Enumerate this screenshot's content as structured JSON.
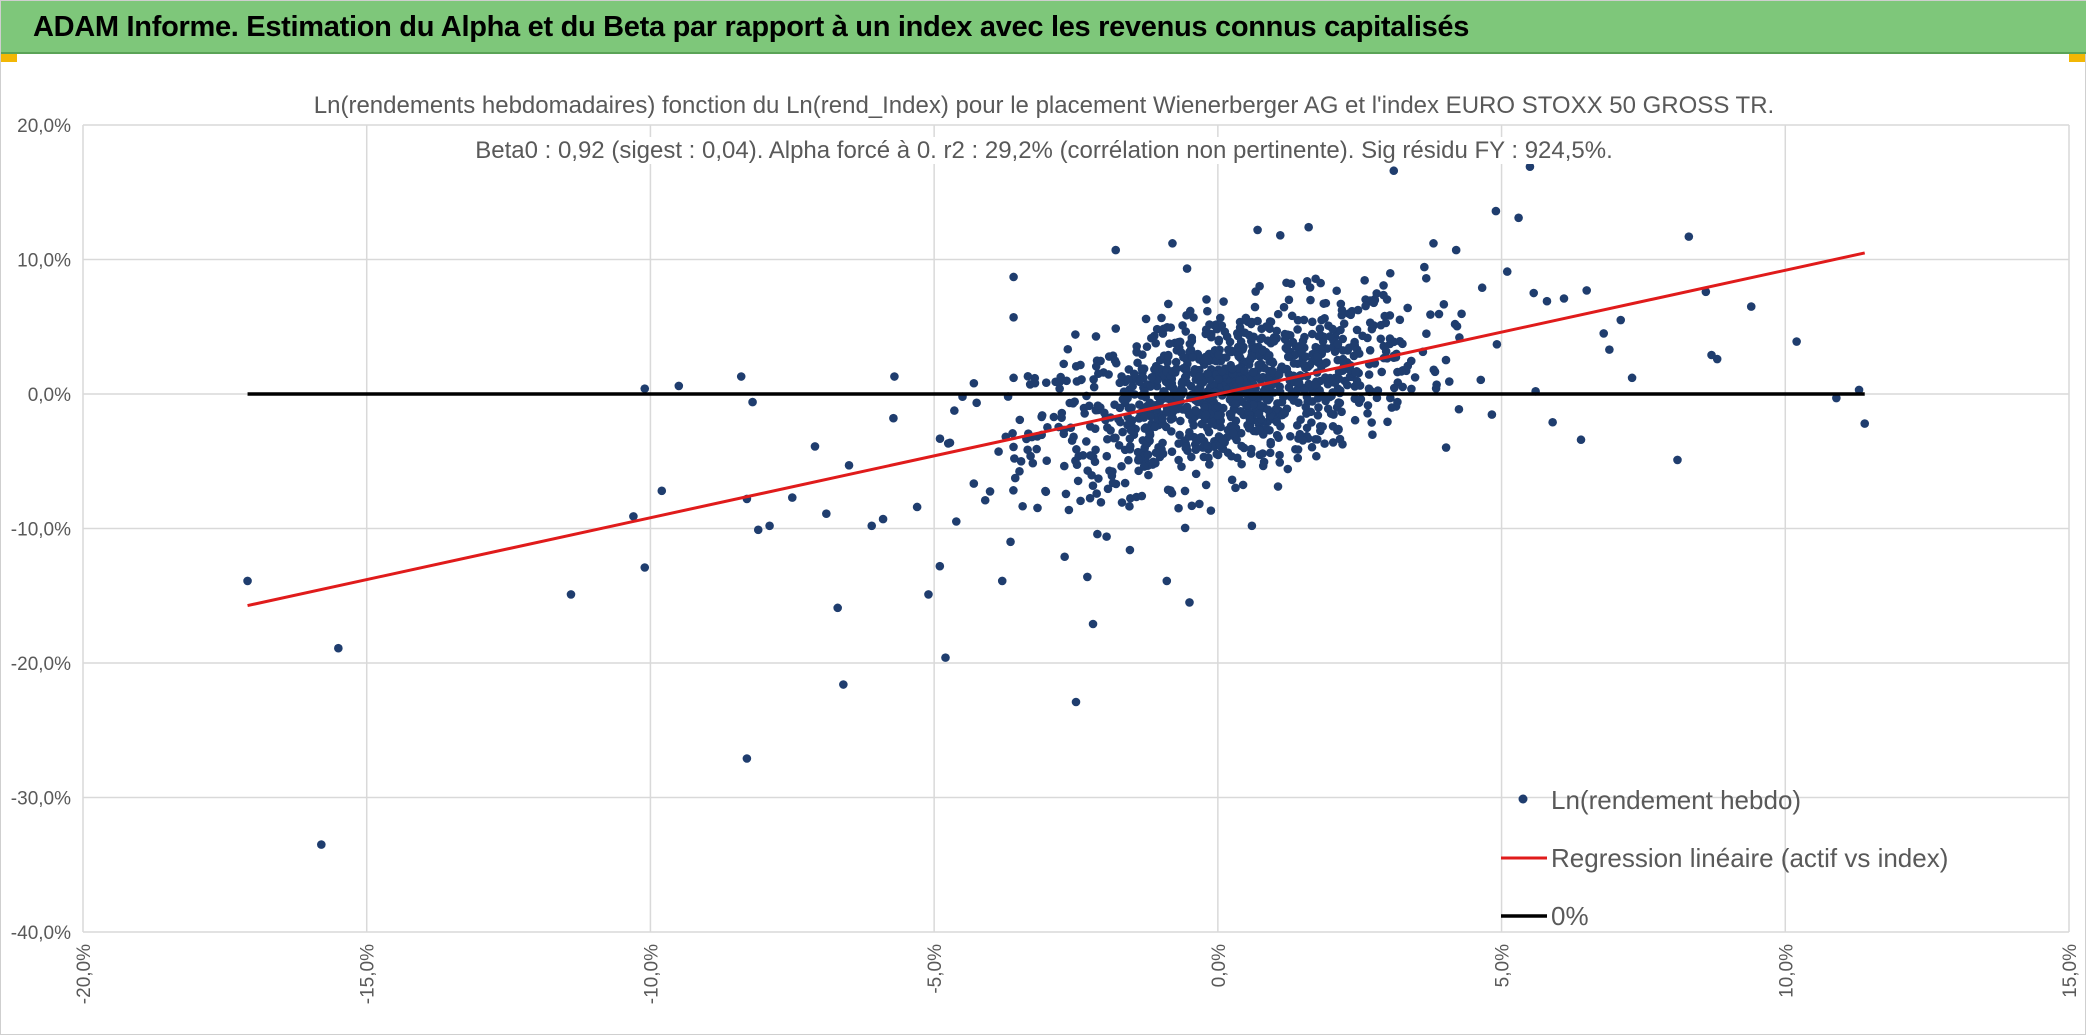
{
  "header": {
    "title": "ADAM Informe. Estimation du Alpha et du Beta par rapport à un index avec les revenus connus capitalisés"
  },
  "colors": {
    "header_bg": "#7ec77a",
    "points": "#1f3d6e",
    "regression": "#e01b1b",
    "zero_line": "#000000",
    "grid": "#d9d9d9",
    "text": "#595959"
  },
  "chart_data": {
    "type": "scatter",
    "title": "Ln(rendements hebdomadaires) fonction du Ln(rend_Index) pour le placement Wienerberger AG et l'index EURO STOXX 50 GROSS TR.",
    "subtitle": "Beta0 : 0,92 (sigest : 0,04). Alpha forcé à 0. r2 : 29,2% (corrélation non pertinente). Sig résidu FY : 924,5%.",
    "xlabel": "",
    "ylabel": "",
    "xlim": [
      -0.2,
      0.15
    ],
    "ylim": [
      -0.4,
      0.2
    ],
    "x_ticks": [
      -0.2,
      -0.15,
      -0.1,
      -0.05,
      0.0,
      0.05,
      0.1,
      0.15
    ],
    "x_tick_labels": [
      "-20,0%",
      "-15,0%",
      "-10,0%",
      "-5,0%",
      "0,0%",
      "5,0%",
      "10,0%",
      "15,0%"
    ],
    "y_ticks": [
      0.2,
      0.1,
      0.0,
      -0.1,
      -0.2,
      -0.3,
      -0.4
    ],
    "y_tick_labels": [
      "20,0%",
      "10,0%",
      "0,0%",
      "-10,0%",
      "-20,0%",
      "-30,0%",
      "-40,0%"
    ],
    "grid": true,
    "legend_position": "bottom-right",
    "legend": {
      "points": "Ln(rendement hebdo)",
      "regression": "Regression linéaire (actif vs index)",
      "zero": "0%"
    },
    "regression": {
      "slope": 0.92,
      "intercept": 0,
      "x_range": [
        -0.171,
        0.114
      ]
    },
    "zero_line": {
      "y": 0,
      "x_range": [
        -0.171,
        0.114
      ]
    },
    "points_core": {
      "count": 1150,
      "x_mean": 0.002,
      "x_sd": 0.017,
      "slope": 0.92,
      "resid_sd": 0.03
    },
    "points_outliers": [
      [
        -0.171,
        -0.139
      ],
      [
        -0.155,
        -0.189
      ],
      [
        -0.158,
        -0.335
      ],
      [
        -0.114,
        -0.149
      ],
      [
        -0.101,
        -0.129
      ],
      [
        -0.101,
        0.004
      ],
      [
        -0.098,
        -0.072
      ],
      [
        -0.103,
        -0.091
      ],
      [
        -0.095,
        0.006
      ],
      [
        -0.083,
        -0.078
      ],
      [
        -0.084,
        0.013
      ],
      [
        -0.081,
        -0.101
      ],
      [
        -0.082,
        -0.006
      ],
      [
        -0.079,
        -0.098
      ],
      [
        -0.083,
        -0.271
      ],
      [
        -0.075,
        -0.077
      ],
      [
        -0.071,
        -0.039
      ],
      [
        -0.069,
        -0.089
      ],
      [
        -0.067,
        -0.159
      ],
      [
        -0.066,
        -0.216
      ],
      [
        -0.065,
        -0.053
      ],
      [
        -0.061,
        -0.098
      ],
      [
        -0.059,
        -0.093
      ],
      [
        -0.057,
        0.013
      ],
      [
        -0.053,
        -0.084
      ],
      [
        -0.051,
        -0.149
      ],
      [
        -0.049,
        -0.128
      ],
      [
        -0.048,
        -0.196
      ],
      [
        -0.045,
        -0.002
      ],
      [
        -0.043,
        0.008
      ],
      [
        -0.041,
        -0.079
      ],
      [
        -0.038,
        -0.139
      ],
      [
        -0.036,
        0.012
      ],
      [
        -0.036,
        0.057
      ],
      [
        -0.036,
        0.087
      ],
      [
        -0.027,
        -0.121
      ],
      [
        -0.025,
        -0.229
      ],
      [
        -0.023,
        -0.136
      ],
      [
        -0.022,
        -0.171
      ],
      [
        -0.018,
        0.107
      ],
      [
        -0.009,
        -0.139
      ],
      [
        -0.008,
        0.112
      ],
      [
        -0.005,
        -0.155
      ],
      [
        0.006,
        -0.098
      ],
      [
        0.007,
        0.122
      ],
      [
        0.011,
        0.118
      ],
      [
        0.016,
        0.124
      ],
      [
        0.031,
        0.166
      ],
      [
        0.038,
        0.112
      ],
      [
        0.042,
        0.107
      ],
      [
        0.049,
        0.136
      ],
      [
        0.051,
        0.091
      ],
      [
        0.053,
        0.131
      ],
      [
        0.055,
        0.169
      ],
      [
        0.056,
        0.002
      ],
      [
        0.058,
        0.069
      ],
      [
        0.059,
        -0.021
      ],
      [
        0.061,
        0.071
      ],
      [
        0.064,
        -0.034
      ],
      [
        0.065,
        0.077
      ],
      [
        0.068,
        0.045
      ],
      [
        0.069,
        0.033
      ],
      [
        0.071,
        0.055
      ],
      [
        0.073,
        0.012
      ],
      [
        0.081,
        -0.049
      ],
      [
        0.083,
        0.117
      ],
      [
        0.086,
        0.076
      ],
      [
        0.087,
        0.029
      ],
      [
        0.088,
        0.026
      ],
      [
        0.094,
        0.065
      ],
      [
        0.102,
        0.039
      ],
      [
        0.109,
        -0.003
      ],
      [
        0.113,
        0.003
      ],
      [
        0.114,
        -0.022
      ]
    ]
  }
}
